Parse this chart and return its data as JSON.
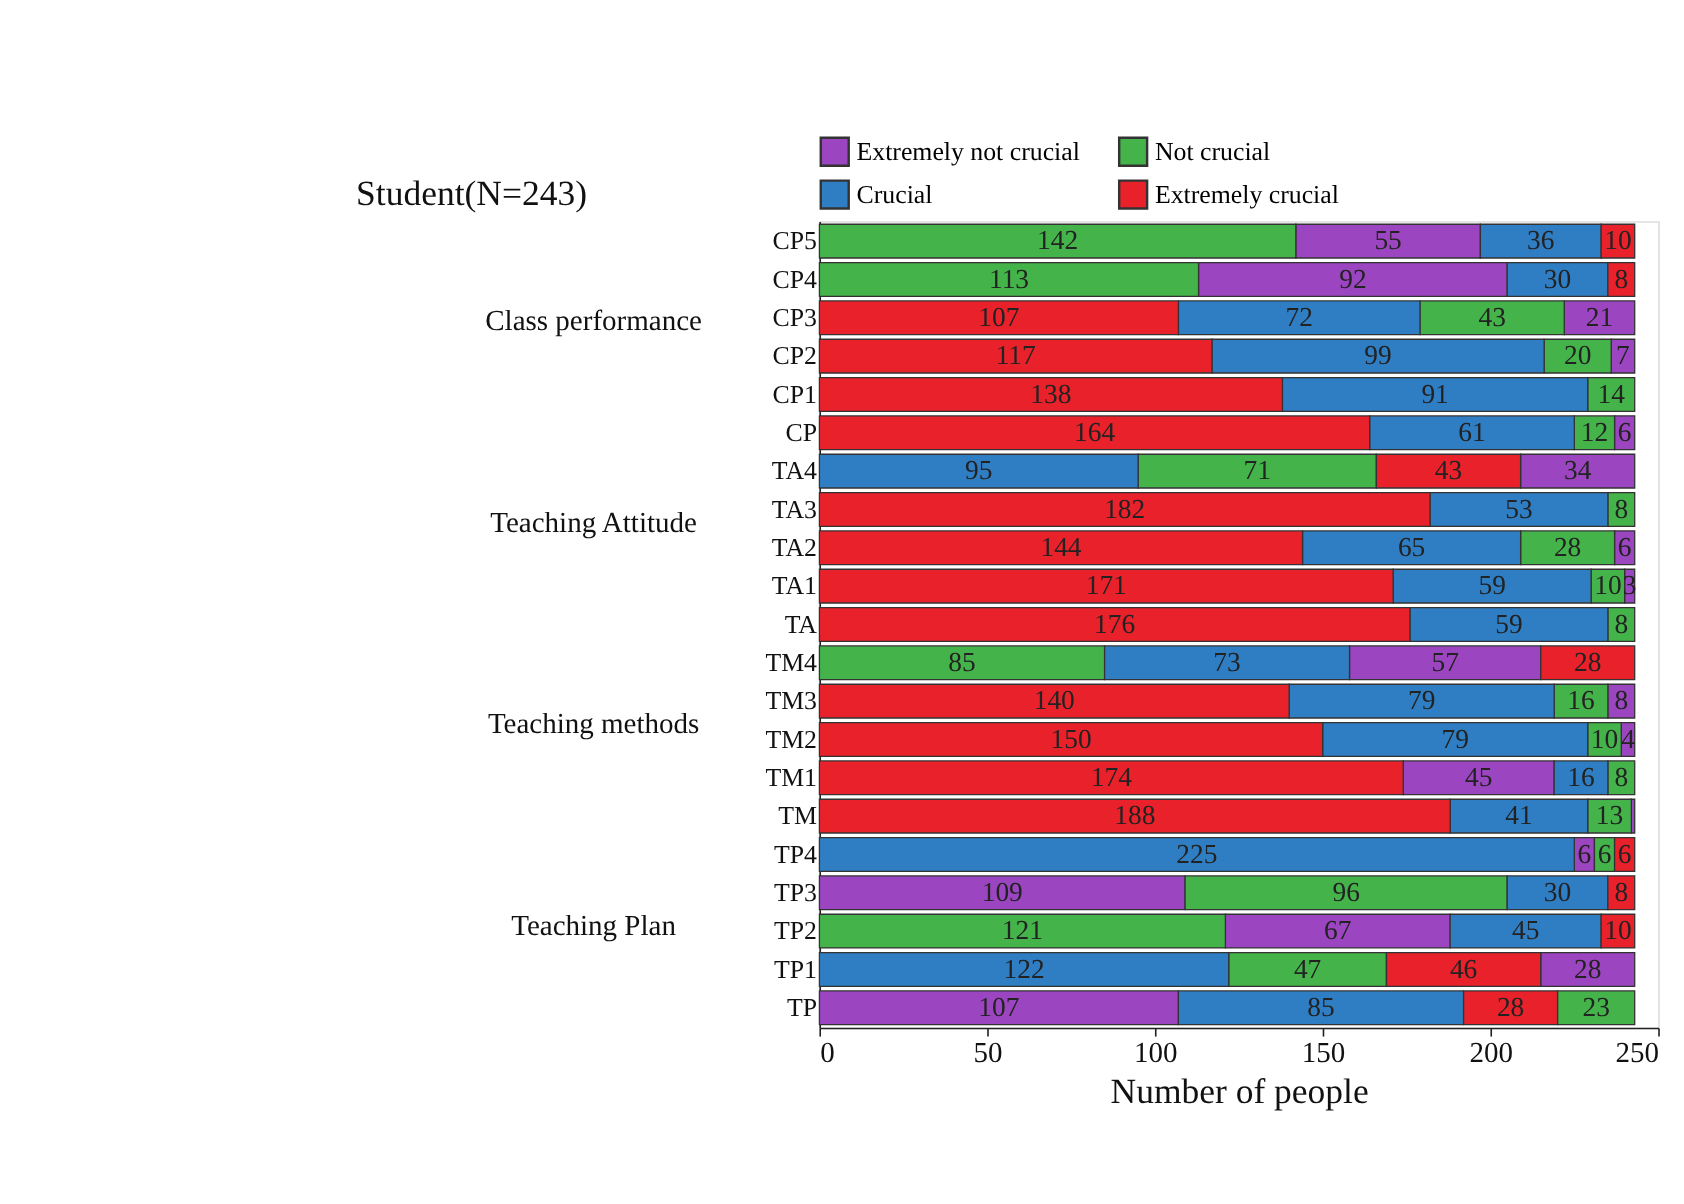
{
  "chart_data": {
    "type": "bar",
    "orientation": "horizontal",
    "title": "Student(N=243)",
    "xlabel": "Number of people",
    "categories": [
      "CP5",
      "CP4",
      "CP3",
      "CP2",
      "CP1",
      "CP",
      "TA4",
      "TA3",
      "TA2",
      "TA1",
      "TA",
      "TM4",
      "TM3",
      "TM2",
      "TM1",
      "TM",
      "TP4",
      "TP3",
      "TP2",
      "TP1",
      "TP"
    ],
    "series": [
      {
        "name": "Extremely not crucial",
        "color": "#9b45c0",
        "values": [
          55,
          92,
          21,
          7,
          null,
          6,
          34,
          null,
          6,
          3,
          null,
          57,
          8,
          4,
          45,
          1,
          6,
          109,
          67,
          28,
          107
        ],
        "base": [
          142,
          113,
          222,
          236,
          null,
          237,
          209,
          null,
          237,
          240,
          null,
          158,
          235,
          239,
          174,
          242,
          225,
          0,
          121,
          215,
          0
        ],
        "value_labels": [
          "55",
          "92",
          "21",
          "7",
          null,
          "6",
          "34",
          null,
          "6",
          "3",
          null,
          "57",
          "8",
          "4",
          "45",
          null,
          "6",
          "109",
          "67",
          "28",
          "107"
        ]
      },
      {
        "name": "Not crucial",
        "color": "#44b34a",
        "values": [
          142,
          113,
          43,
          20,
          14,
          12,
          71,
          8,
          28,
          10,
          8,
          85,
          16,
          10,
          8,
          13,
          6,
          96,
          121,
          47,
          23
        ],
        "base": [
          0,
          0,
          179,
          216,
          229,
          225,
          95,
          235,
          209,
          230,
          235,
          0,
          219,
          229,
          235,
          229,
          231,
          109,
          0,
          122,
          220
        ],
        "value_labels": [
          "142",
          "113",
          "43",
          "20",
          "14",
          "12",
          "71",
          "8",
          "28",
          "10",
          "8",
          "85",
          "16",
          "10",
          "8",
          "13",
          "6",
          "96",
          "121",
          "47",
          "23"
        ]
      },
      {
        "name": "Crucial",
        "color": "#2f7ec3",
        "values": [
          36,
          30,
          72,
          99,
          91,
          61,
          95,
          53,
          65,
          59,
          59,
          73,
          79,
          79,
          16,
          41,
          225,
          30,
          45,
          122,
          85
        ],
        "base": [
          197,
          205,
          107,
          117,
          138,
          164,
          0,
          182,
          144,
          171,
          176,
          85,
          140,
          150,
          219,
          188,
          0,
          205,
          188,
          0,
          107
        ],
        "value_labels": [
          "36",
          "30",
          "72",
          "99",
          "91",
          "61",
          "95",
          "53",
          "65",
          "59",
          "59",
          "73",
          "79",
          "79",
          "16",
          "41",
          "225",
          "30",
          "45",
          "122",
          "85"
        ]
      },
      {
        "name": "Extremely crucial",
        "color": "#e8212a",
        "values": [
          10,
          8,
          107,
          117,
          138,
          164,
          43,
          182,
          144,
          171,
          176,
          28,
          140,
          150,
          174,
          188,
          6,
          8,
          10,
          46,
          28
        ],
        "base": [
          233,
          235,
          0,
          0,
          0,
          0,
          166,
          0,
          0,
          0,
          0,
          215,
          0,
          0,
          0,
          0,
          237,
          235,
          233,
          169,
          192
        ],
        "value_labels": [
          "10",
          "8",
          "107",
          "117",
          "138",
          "164",
          "43",
          "182",
          "144",
          "171",
          "176",
          "28",
          "140",
          "150",
          "174",
          "188",
          "6",
          "8",
          "10",
          "46",
          "28"
        ]
      }
    ],
    "xlim": [
      0,
      250
    ],
    "xticks": [
      0,
      50,
      100,
      150,
      200,
      250
    ],
    "grid": false,
    "legend": "top",
    "annotations": [
      "Class performance",
      "Teaching Attitude",
      "Teaching methods",
      "Teaching Plan"
    ]
  }
}
